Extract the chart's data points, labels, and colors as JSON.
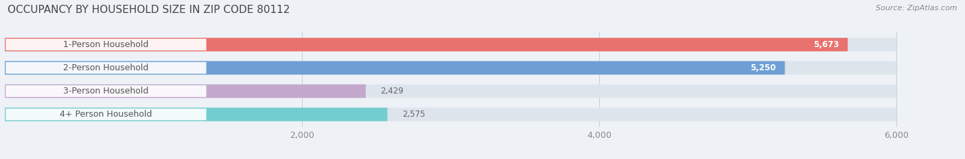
{
  "title": "OCCUPANCY BY HOUSEHOLD SIZE IN ZIP CODE 80112",
  "source": "Source: ZipAtlas.com",
  "categories": [
    "1-Person Household",
    "2-Person Household",
    "3-Person Household",
    "4+ Person Household"
  ],
  "values": [
    5673,
    5250,
    2429,
    2575
  ],
  "bar_colors": [
    "#e8726e",
    "#6e9fd4",
    "#c4a8cc",
    "#72cece"
  ],
  "xlim": [
    0,
    6300
  ],
  "data_max": 6000,
  "xticks": [
    2000,
    4000,
    6000
  ],
  "xticklabels": [
    "2,000",
    "4,000",
    "6,000"
  ],
  "value_labels": [
    "5,673",
    "5,250",
    "2,429",
    "2,575"
  ],
  "bg_color": "#eef2f6",
  "bar_bg_color": "#dde4ec",
  "label_bg_color": "#ffffff",
  "title_fontsize": 11,
  "source_fontsize": 8,
  "label_fontsize": 9,
  "value_fontsize": 8.5,
  "tick_fontsize": 9
}
